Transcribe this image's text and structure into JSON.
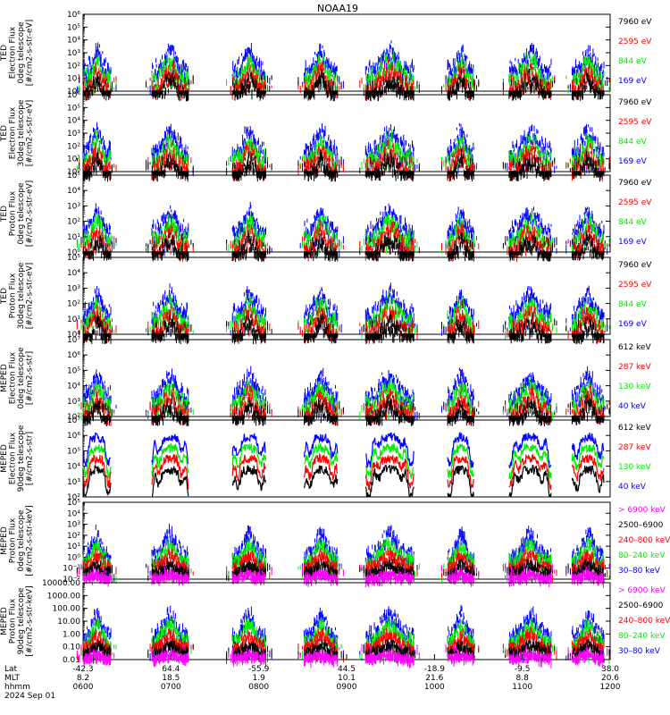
{
  "title": "NOAA19",
  "colors": {
    "black": "#000000",
    "red": "#ff0000",
    "green": "#00ee00",
    "blue": "#0000ff",
    "magenta": "#ff00ff",
    "background": "#ffffff"
  },
  "chart_data": [
    {
      "type": "scatter",
      "ylabel": [
        "TED",
        "Electron Flux",
        "0deg telescope",
        "[#/cm2-s-str-eV]"
      ],
      "ylim": [
        1,
        1000000
      ],
      "yscale": "log",
      "yticks": [
        {
          "v": 1,
          "label": "10⁰"
        },
        {
          "v": 10,
          "label": "10¹"
        },
        {
          "v": 100,
          "label": "10²"
        },
        {
          "v": 1000,
          "label": "10³"
        },
        {
          "v": 10000,
          "label": "10⁴"
        },
        {
          "v": 100000,
          "label": "10⁵"
        },
        {
          "v": 1000000,
          "label": "10⁶"
        }
      ],
      "legend": [
        {
          "label": "7960 eV",
          "color": "#000000"
        },
        {
          "label": "2595 eV",
          "color": "#ff0000"
        },
        {
          "label": "844 eV",
          "color": "#00ee00"
        },
        {
          "label": "169 eV",
          "color": "#0000ff"
        }
      ]
    },
    {
      "type": "scatter",
      "ylabel": [
        "TED",
        "Electron Flux",
        "30deg telescope",
        "[#/cm2-s-str-eV]"
      ],
      "ylim": [
        1,
        1000000
      ],
      "yscale": "log",
      "yticks": [
        {
          "v": 1,
          "label": "10⁰"
        },
        {
          "v": 10,
          "label": "10¹"
        },
        {
          "v": 100,
          "label": "10²"
        },
        {
          "v": 1000,
          "label": "10³"
        },
        {
          "v": 10000,
          "label": "10⁴"
        },
        {
          "v": 100000,
          "label": "10⁵"
        },
        {
          "v": 1000000,
          "label": "10⁶"
        }
      ],
      "legend": [
        {
          "label": "7960 eV",
          "color": "#000000"
        },
        {
          "label": "2595 eV",
          "color": "#ff0000"
        },
        {
          "label": "844 eV",
          "color": "#00ee00"
        },
        {
          "label": "169 eV",
          "color": "#0000ff"
        }
      ]
    },
    {
      "type": "scatter",
      "ylabel": [
        "TED",
        "Proton Flux",
        "0deg telescope",
        "[#/cm2-s-str-eV]"
      ],
      "ylim": [
        1,
        100000
      ],
      "yscale": "log",
      "yticks": [
        {
          "v": 1,
          "label": "10⁰"
        },
        {
          "v": 10,
          "label": "10¹"
        },
        {
          "v": 100,
          "label": "10²"
        },
        {
          "v": 1000,
          "label": "10³"
        },
        {
          "v": 10000,
          "label": "10⁴"
        },
        {
          "v": 100000,
          "label": "10⁵"
        }
      ],
      "legend": [
        {
          "label": "7960 eV",
          "color": "#000000"
        },
        {
          "label": "2595 eV",
          "color": "#ff0000"
        },
        {
          "label": "844 eV",
          "color": "#00ee00"
        },
        {
          "label": "169 eV",
          "color": "#0000ff"
        }
      ]
    },
    {
      "type": "scatter",
      "ylabel": [
        "TED",
        "Proton Flux",
        "30deg telescope",
        "[#/cm2-s-str-eV]"
      ],
      "ylim": [
        1,
        100000
      ],
      "yscale": "log",
      "yticks": [
        {
          "v": 1,
          "label": "10⁰"
        },
        {
          "v": 10,
          "label": "10¹"
        },
        {
          "v": 100,
          "label": "10²"
        },
        {
          "v": 1000,
          "label": "10³"
        },
        {
          "v": 10000,
          "label": "10⁴"
        },
        {
          "v": 100000,
          "label": "10⁵"
        }
      ],
      "legend": [
        {
          "label": "7960 eV",
          "color": "#000000"
        },
        {
          "label": "2595 eV",
          "color": "#ff0000"
        },
        {
          "label": "844 eV",
          "color": "#00ee00"
        },
        {
          "label": "169 eV",
          "color": "#0000ff"
        }
      ]
    },
    {
      "type": "scatter",
      "ylabel": [
        "MEPED",
        "Electron Flux",
        "0deg telescope",
        "[#/cm2-s-str]"
      ],
      "ylim": [
        100,
        10000000
      ],
      "yscale": "log",
      "yticks": [
        {
          "v": 100,
          "label": "10²"
        },
        {
          "v": 1000,
          "label": "10³"
        },
        {
          "v": 10000,
          "label": "10⁴"
        },
        {
          "v": 100000,
          "label": "10⁵"
        },
        {
          "v": 1000000,
          "label": "10⁶"
        },
        {
          "v": 10000000,
          "label": "10⁷"
        }
      ],
      "legend": [
        {
          "label": "612 keV",
          "color": "#000000"
        },
        {
          "label": "287 keV",
          "color": "#ff0000"
        },
        {
          "label": "130 keV",
          "color": "#00ee00"
        },
        {
          "label": "40 keV",
          "color": "#0000ff"
        }
      ]
    },
    {
      "type": "scatter",
      "ylabel": [
        "MEPED",
        "Electron Flux",
        "90deg telescope",
        "[#/cm2-s-str]"
      ],
      "ylim": [
        100,
        10000000
      ],
      "yscale": "log",
      "yticks": [
        {
          "v": 100,
          "label": "10²"
        },
        {
          "v": 1000,
          "label": "10³"
        },
        {
          "v": 10000,
          "label": "10⁴"
        },
        {
          "v": 100000,
          "label": "10⁵"
        },
        {
          "v": 1000000,
          "label": "10⁶"
        },
        {
          "v": 10000000,
          "label": "10⁷"
        }
      ],
      "legend": [
        {
          "label": "612 keV",
          "color": "#000000"
        },
        {
          "label": "287 keV",
          "color": "#ff0000"
        },
        {
          "label": "130 keV",
          "color": "#00ee00"
        },
        {
          "label": "40 keV",
          "color": "#0000ff"
        }
      ]
    },
    {
      "type": "scatter",
      "ylabel": [
        "MEPED",
        "Proton Flux",
        "0deg telescope",
        "[#/cm2-s-str-keV]"
      ],
      "ylim": [
        0.01,
        100000
      ],
      "yscale": "log",
      "yticks": [
        {
          "v": 0.01,
          "label": "10⁻²"
        },
        {
          "v": 0.1,
          "label": "10⁻¹"
        },
        {
          "v": 1,
          "label": "10⁰"
        },
        {
          "v": 10,
          "label": "10¹"
        },
        {
          "v": 100,
          "label": "10²"
        },
        {
          "v": 1000,
          "label": "10³"
        },
        {
          "v": 10000,
          "label": "10⁴"
        },
        {
          "v": 100000,
          "label": "10⁵"
        }
      ],
      "legend": [
        {
          "label": "> 6900 keV",
          "color": "#ff00ff"
        },
        {
          "label": "2500–6900",
          "color": "#000000"
        },
        {
          "label": "240–800 keV",
          "color": "#ff0000"
        },
        {
          "label": "80–240 keV",
          "color": "#00ee00"
        },
        {
          "label": "30–80 keV",
          "color": "#0000ff"
        }
      ]
    },
    {
      "type": "scatter",
      "ylabel": [
        "MEPED",
        "Proton Flux",
        "90deg telescope",
        "[#/cm2-s-str-keV]"
      ],
      "ylim": [
        0.01,
        10000
      ],
      "yscale": "log",
      "yticks": [
        {
          "v": 0.01,
          "label": "0.01"
        },
        {
          "v": 0.1,
          "label": "0.10"
        },
        {
          "v": 1,
          "label": "1.00"
        },
        {
          "v": 10,
          "label": "10.00"
        },
        {
          "v": 100,
          "label": "100.00"
        },
        {
          "v": 1000,
          "label": "1000.00"
        },
        {
          "v": 10000,
          "label": "10000.00"
        }
      ],
      "legend": [
        {
          "label": "> 6900 keV",
          "color": "#ff00ff"
        },
        {
          "label": "2500–6900",
          "color": "#000000"
        },
        {
          "label": "240–800 keV",
          "color": "#ff0000"
        },
        {
          "label": "80–240 keV",
          "color": "#00ee00"
        },
        {
          "label": "30–80 keV",
          "color": "#0000ff"
        }
      ]
    }
  ],
  "x_axis": {
    "row_labels": [
      "Lat",
      "MLT",
      "hhmm",
      "2024 Sep 01"
    ],
    "ticks": [
      {
        "lat": "-42.3",
        "mlt": "8.2",
        "hhmm": "0600"
      },
      {
        "lat": "64.4",
        "mlt": "18.5",
        "hhmm": "0700"
      },
      {
        "lat": "-55.9",
        "mlt": "1.9",
        "hhmm": "0800"
      },
      {
        "lat": "44.5",
        "mlt": "10.1",
        "hhmm": "0900"
      },
      {
        "lat": "-18.9",
        "mlt": "21.6",
        "hhmm": "1000"
      },
      {
        "lat": "-9.5",
        "mlt": "8.8",
        "hhmm": "1100"
      },
      {
        "lat": "38.0",
        "mlt": "20.6",
        "hhmm": "1200"
      }
    ]
  },
  "passes": [
    {
      "start": "0600",
      "end": "0619"
    },
    {
      "start": "0647",
      "end": "0712"
    },
    {
      "start": "0742",
      "end": "0805"
    },
    {
      "start": "0831",
      "end": "0854"
    },
    {
      "start": "0913",
      "end": "0946"
    },
    {
      "start": "1009",
      "end": "1027"
    },
    {
      "start": "1051",
      "end": "1120"
    },
    {
      "start": "1134",
      "end": "1156"
    }
  ]
}
